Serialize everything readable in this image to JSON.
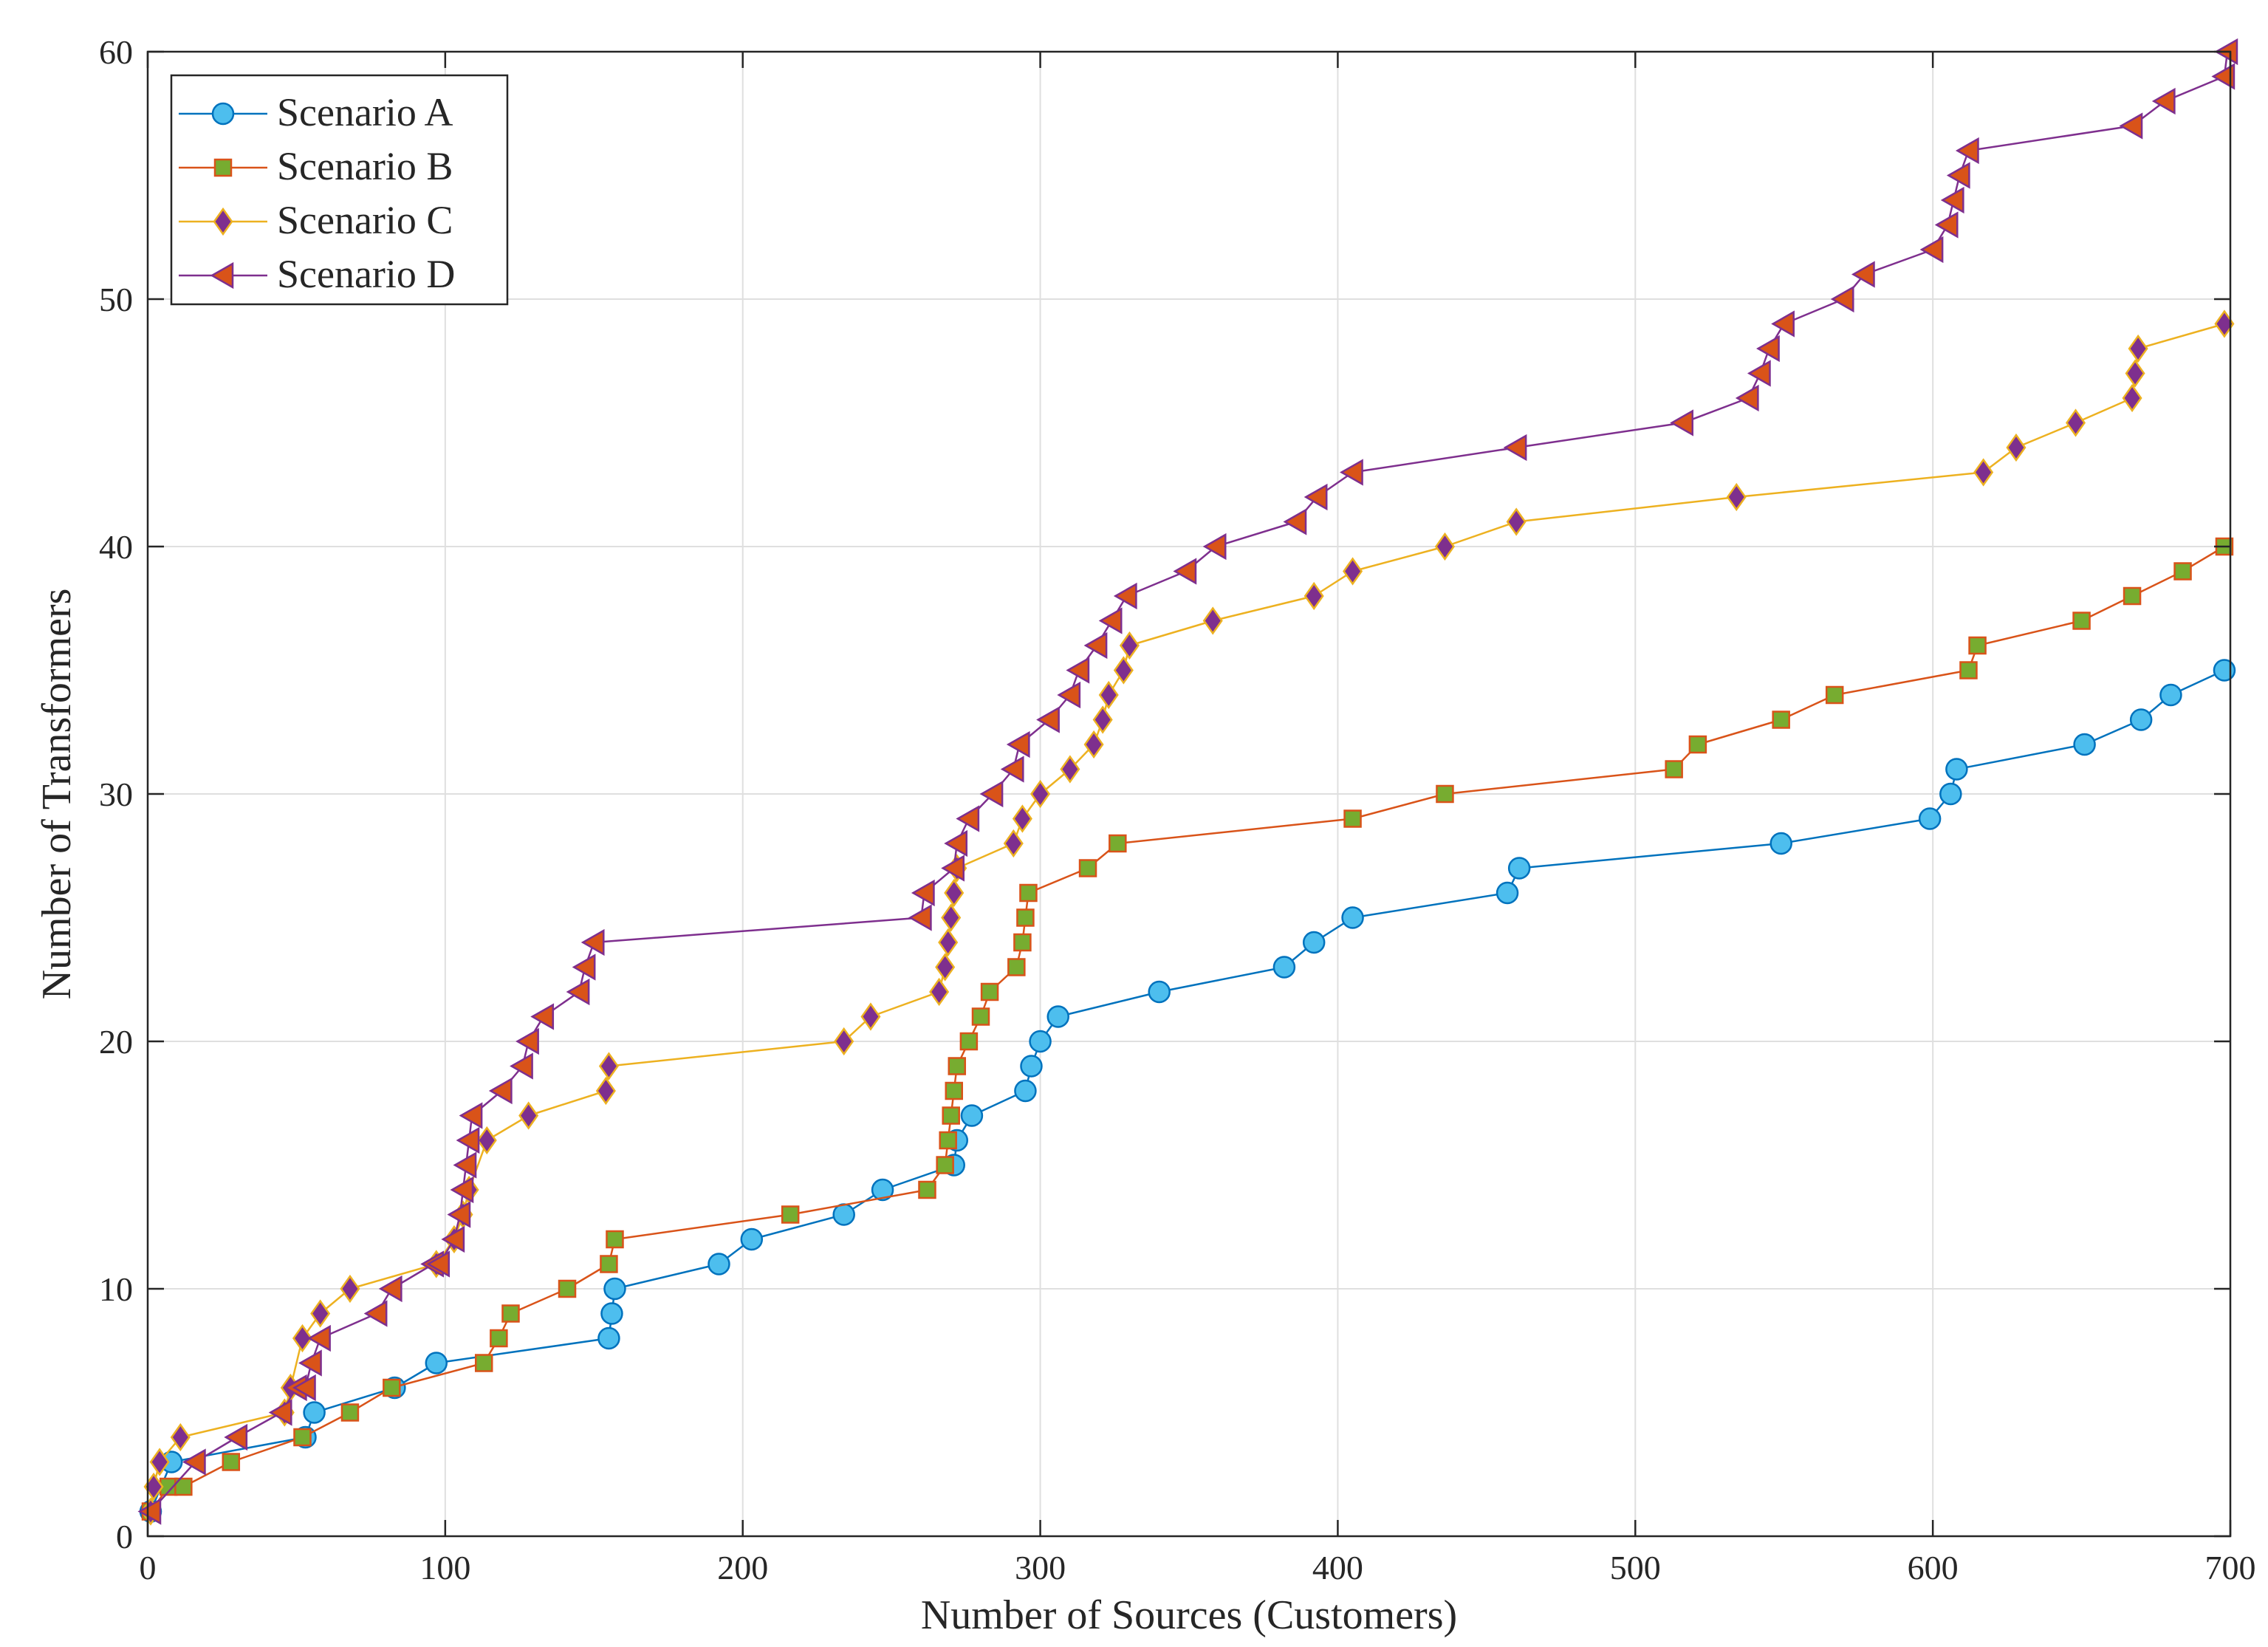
{
  "chart_data": {
    "type": "line",
    "title": "",
    "xlabel": "Number of Sources (Customers)",
    "ylabel": "Number of Transformers",
    "xlim": [
      0,
      700
    ],
    "ylim": [
      0,
      60
    ],
    "xticks": [
      0,
      100,
      200,
      300,
      400,
      500,
      600,
      700
    ],
    "yticks": [
      0,
      10,
      20,
      30,
      40,
      50,
      60
    ],
    "grid": true,
    "legend_position": "top-left",
    "series": [
      {
        "name": "Scenario A",
        "color": "#0072BD",
        "marker": "circle",
        "marker_fill": "#4DBEEE",
        "x": [
          1,
          8,
          53,
          56,
          83,
          97,
          155,
          156,
          157,
          192,
          203,
          234,
          247,
          271,
          272,
          277,
          295,
          297,
          300,
          306,
          340,
          382,
          392,
          405,
          457,
          461,
          549,
          599,
          606,
          608,
          651,
          670,
          680,
          698
        ],
        "y": [
          1,
          3,
          4,
          5,
          6,
          7,
          8,
          9,
          10,
          11,
          12,
          13,
          14,
          15,
          16,
          17,
          18,
          19,
          20,
          21,
          22,
          23,
          24,
          25,
          26,
          27,
          28,
          29,
          30,
          31,
          32,
          33,
          34,
          35
        ]
      },
      {
        "name": "Scenario B",
        "color": "#D95319",
        "marker": "square",
        "marker_fill": "#77AC30",
        "x": [
          1,
          7,
          12,
          28,
          52,
          68,
          82,
          113,
          118,
          122,
          141,
          155,
          157,
          216,
          262,
          268,
          269,
          270,
          271,
          272,
          276,
          280,
          283,
          292,
          294,
          295,
          296,
          316,
          326,
          405,
          436,
          513,
          521,
          549,
          567,
          612,
          615,
          650,
          667,
          684,
          698
        ],
        "y": [
          1,
          2,
          2,
          3,
          4,
          5,
          6,
          7,
          8,
          9,
          10,
          11,
          12,
          13,
          14,
          15,
          16,
          17,
          18,
          19,
          20,
          21,
          22,
          23,
          24,
          25,
          26,
          27,
          28,
          29,
          30,
          31,
          32,
          33,
          34,
          35,
          36,
          37,
          38,
          39,
          40
        ]
      },
      {
        "name": "Scenario C",
        "color": "#EDB120",
        "marker": "diamond",
        "marker_fill": "#7E2F8E",
        "x": [
          1,
          2,
          4,
          11,
          46,
          48,
          52,
          58,
          68,
          97,
          103,
          106,
          108,
          114,
          128,
          154,
          155,
          234,
          243,
          266,
          268,
          269,
          270,
          271,
          272,
          291,
          294,
          300,
          310,
          318,
          321,
          323,
          328,
          330,
          358,
          392,
          405,
          436,
          460,
          534,
          617,
          628,
          648,
          667,
          668,
          669,
          698
        ],
        "y": [
          1,
          2,
          3,
          4,
          5,
          6,
          8,
          9,
          10,
          11,
          12,
          13,
          14,
          16,
          17,
          18,
          19,
          20,
          21,
          22,
          23,
          24,
          25,
          26,
          27,
          28,
          29,
          30,
          31,
          32,
          33,
          34,
          35,
          36,
          37,
          38,
          39,
          40,
          41,
          42,
          43,
          44,
          45,
          46,
          47,
          48,
          49
        ]
      },
      {
        "name": "Scenario D",
        "color": "#7E2F8E",
        "marker": "triangle-left",
        "marker_fill": "#D95319",
        "x": [
          1,
          16,
          30,
          45,
          50,
          53,
          55,
          58,
          77,
          82,
          96,
          98,
          103,
          105,
          106,
          107,
          108,
          109,
          119,
          126,
          128,
          133,
          145,
          147,
          150,
          260,
          261,
          271,
          272,
          276,
          284,
          291,
          293,
          303,
          310,
          313,
          319,
          324,
          329,
          349,
          359,
          386,
          393,
          405,
          460,
          516,
          538,
          542,
          545,
          550,
          570,
          577,
          600,
          605,
          607,
          609,
          612,
          667,
          678,
          698,
          699
        ],
        "y": [
          1,
          3,
          4,
          5,
          6,
          6,
          7,
          8,
          9,
          10,
          11,
          11,
          12,
          13,
          14,
          15,
          16,
          17,
          18,
          19,
          20,
          21,
          22,
          23,
          24,
          25,
          26,
          27,
          28,
          29,
          30,
          31,
          32,
          33,
          34,
          35,
          36,
          37,
          38,
          39,
          40,
          41,
          42,
          43,
          44,
          45,
          46,
          47,
          48,
          49,
          50,
          51,
          52,
          53,
          54,
          55,
          56,
          57,
          58,
          59,
          60
        ]
      }
    ]
  }
}
